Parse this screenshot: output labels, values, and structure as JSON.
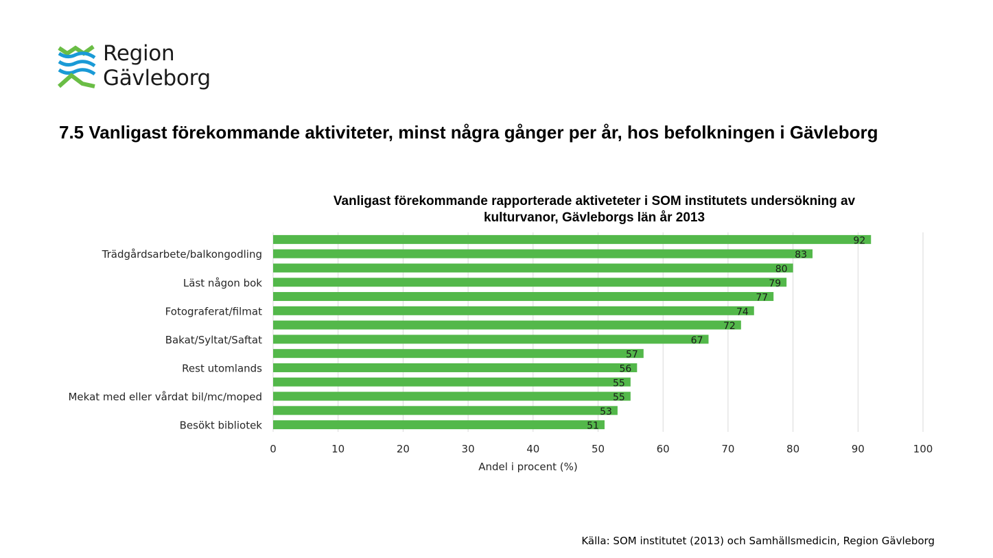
{
  "logo": {
    "text": "Region\nGävleborg"
  },
  "page_title": "7.5 Vanligast förekommande aktiviteter, minst några gånger per år, hos befolkningen i Gävleborg",
  "source": "Källa: SOM institutet (2013) och Samhällsmedicin, Region Gävleborg",
  "colors": {
    "bar": "#53B84A",
    "grid": "#D9D9D9",
    "logo_blue": "#1A9AD6",
    "logo_green": "#6ABD45"
  },
  "chart_data": {
    "type": "bar",
    "orientation": "horizontal",
    "title": "Vanligast förekommande  rapporterade aktiveteter i SOM institutets undersökning av kulturvanor, Gävleborgs län år 2013",
    "xlabel": "Andel i procent (%)",
    "ylabel": "",
    "xlim": [
      0,
      100
    ],
    "xticks": [
      0,
      10,
      20,
      30,
      40,
      50,
      60,
      70,
      80,
      90,
      100
    ],
    "grid": true,
    "categories": [
      "",
      "Trädgårdsarbete/balkongodling",
      "",
      "Läst någon bok",
      "",
      "Fotograferat/filmat",
      "",
      "Bakat/Syltat/Saftat",
      "",
      "Rest utomlands",
      "",
      "Mekat med eller vårdat bil/mc/moped",
      "",
      "Besökt bibliotek"
    ],
    "values": [
      92,
      83,
      80,
      79,
      77,
      74,
      72,
      67,
      57,
      56,
      55,
      55,
      53,
      51
    ]
  }
}
